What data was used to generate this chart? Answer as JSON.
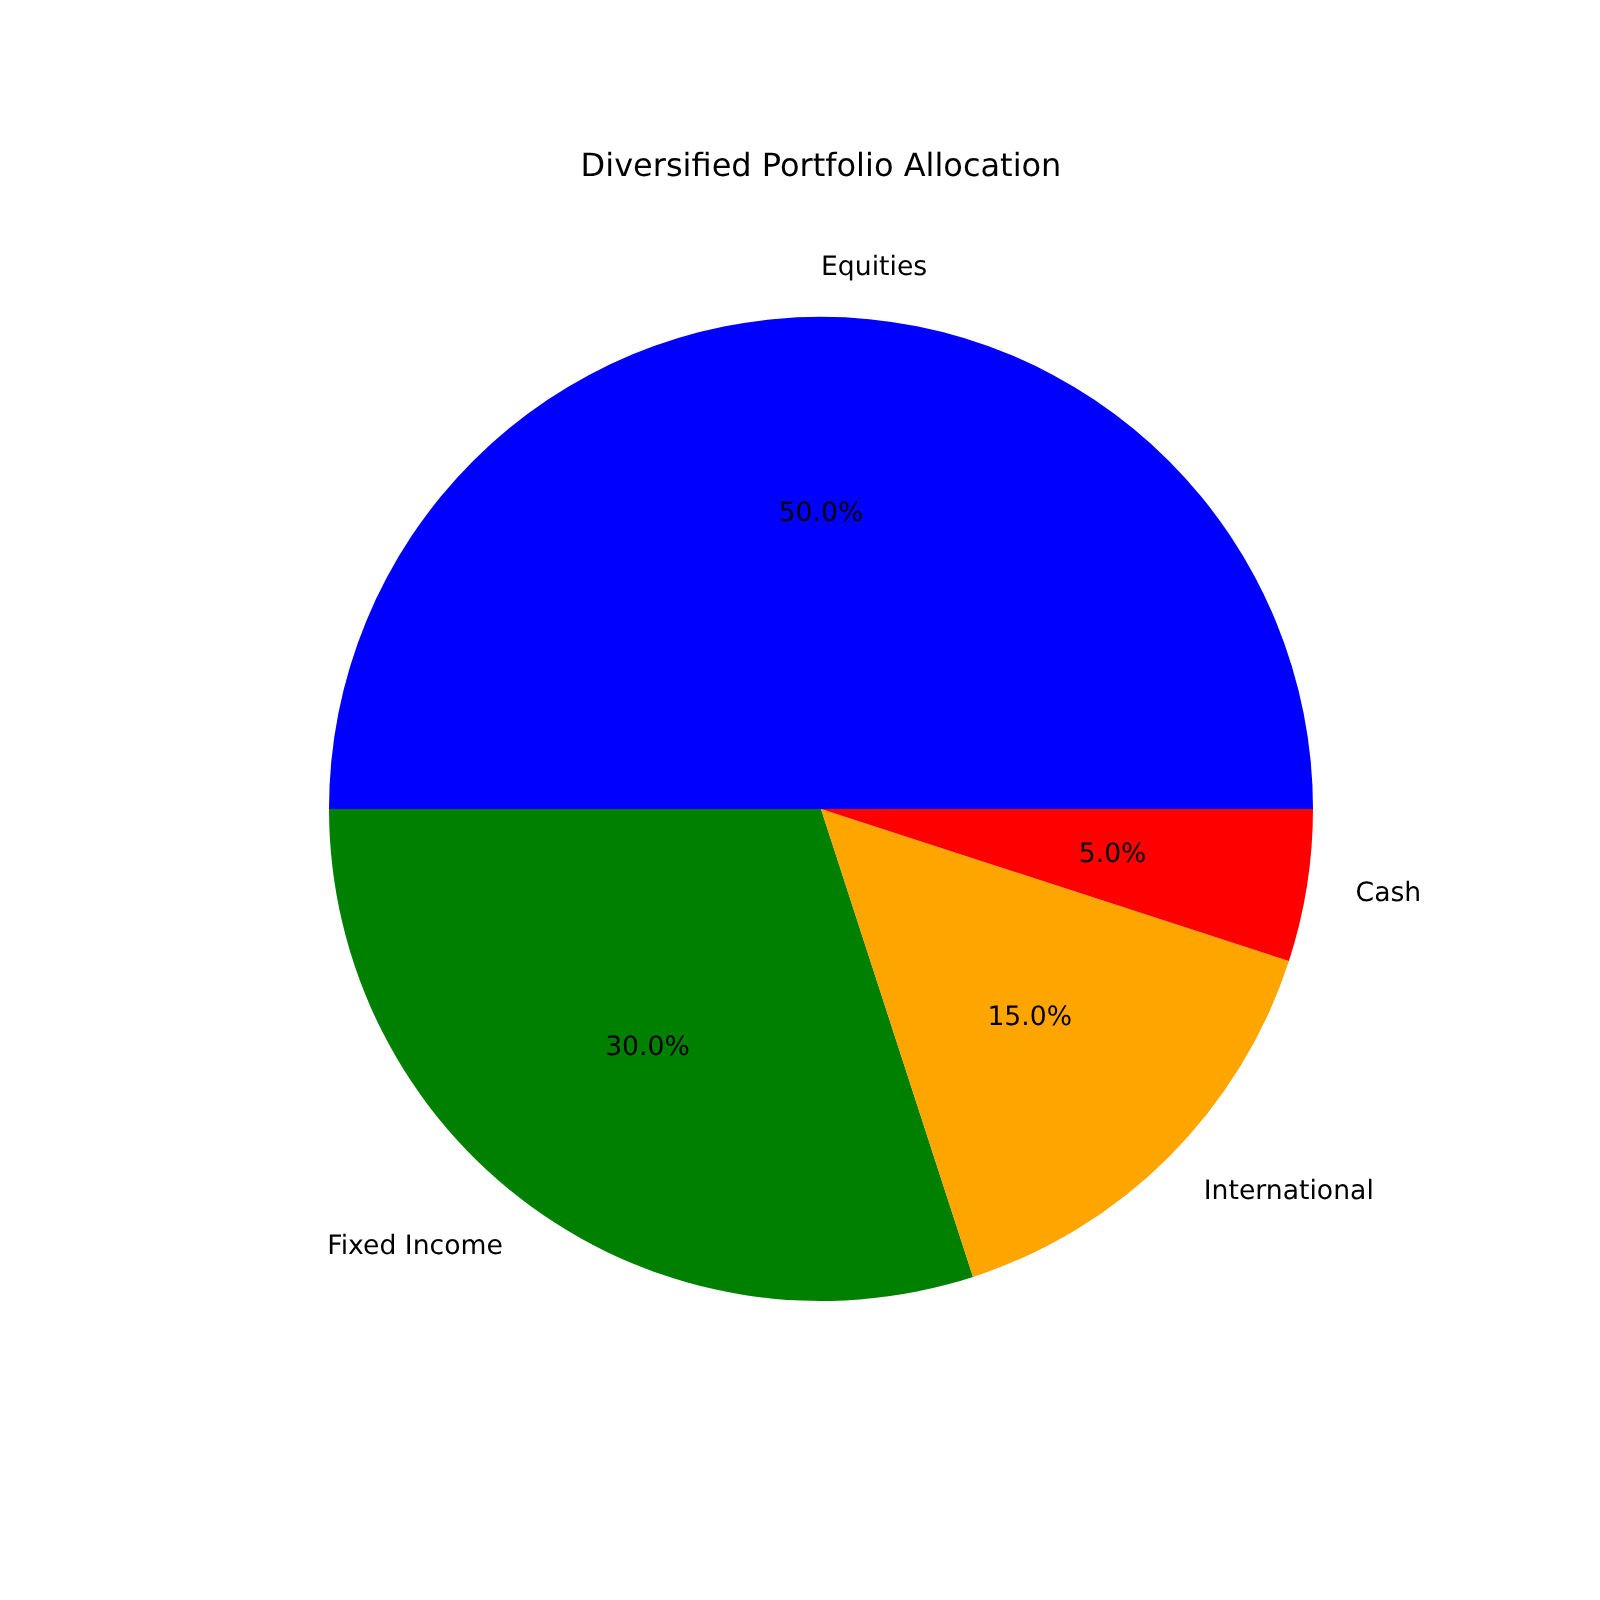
{
  "chart_data": {
    "type": "pie",
    "title": "Diversified Portfolio Allocation",
    "categories": [
      "Equities",
      "Fixed Income",
      "International",
      "Cash"
    ],
    "values": [
      50,
      30,
      15,
      5
    ],
    "colors": [
      "#0000ff",
      "#008000",
      "#ffa500",
      "#ff0000"
    ],
    "value_labels": [
      "50.0%",
      "30.0%",
      "15.0%",
      "5.0%"
    ]
  }
}
